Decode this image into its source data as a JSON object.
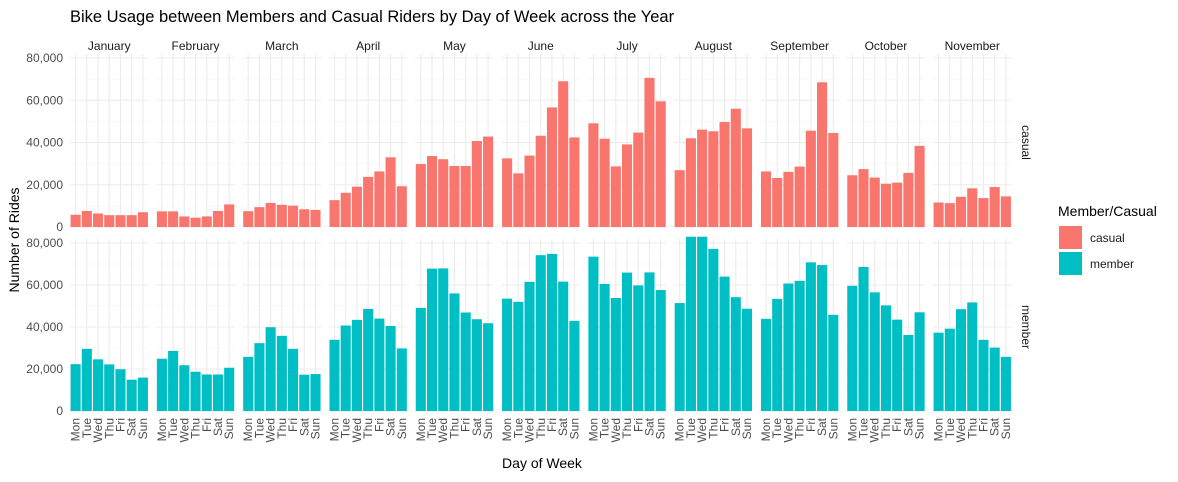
{
  "chart_data": {
    "type": "bar",
    "title": "Bike Usage between Members and Casual Riders by Day of Week across the Year",
    "xlabel": "Day of Week",
    "ylabel": "Number of Rides",
    "ylim": [
      0,
      80000
    ],
    "yticks": [
      0,
      20000,
      40000,
      60000,
      80000
    ],
    "ytick_labels": [
      "0",
      "20,000",
      "40,000",
      "60,000",
      "80,000"
    ],
    "grid": true,
    "legend_position": "right",
    "legend_title": "Member/Casual",
    "days": [
      "Mon",
      "Tue",
      "Wed",
      "Thu",
      "Fri",
      "Sat",
      "Sun"
    ],
    "months": [
      "January",
      "February",
      "March",
      "April",
      "May",
      "June",
      "July",
      "August",
      "September",
      "October",
      "November"
    ],
    "series": [
      {
        "name": "casual",
        "color": "#F8766D",
        "values": [
          [
            5800,
            7600,
            6400,
            5600,
            5600,
            5600,
            7000
          ],
          [
            7400,
            7400,
            5000,
            4400,
            5000,
            7600,
            10700
          ],
          [
            7500,
            9400,
            11400,
            10500,
            10100,
            8400,
            8100
          ],
          [
            12700,
            16200,
            19100,
            23700,
            26300,
            33000,
            19300
          ],
          [
            29800,
            33600,
            32100,
            28900,
            28900,
            40700,
            42800
          ],
          [
            32500,
            25400,
            33800,
            43200,
            56600,
            69000,
            42400
          ],
          [
            49100,
            41800,
            28700,
            39100,
            44700,
            70600,
            59500
          ],
          [
            26900,
            42000,
            46100,
            45300,
            49700,
            56000,
            46700
          ],
          [
            26300,
            23200,
            26100,
            28600,
            45600,
            68500,
            44500
          ],
          [
            24500,
            27400,
            23400,
            20500,
            21000,
            25600,
            38400
          ],
          [
            11600,
            11300,
            14300,
            18300,
            13700,
            18900,
            14500
          ]
        ]
      },
      {
        "name": "member",
        "color": "#00BFC4",
        "values": [
          [
            22300,
            29600,
            24600,
            22200,
            19900,
            14900,
            15900
          ],
          [
            24900,
            28600,
            21800,
            18700,
            17400,
            17400,
            20600
          ],
          [
            25800,
            32300,
            39900,
            35800,
            29600,
            17300,
            17600
          ],
          [
            33900,
            40700,
            43400,
            48600,
            44000,
            40500,
            29800
          ],
          [
            49100,
            67800,
            67900,
            56000,
            46900,
            43700,
            41800
          ],
          [
            53500,
            52000,
            61500,
            74200,
            74800,
            61600,
            42900
          ],
          [
            73500,
            60500,
            53800,
            65900,
            59800,
            66000,
            57600
          ],
          [
            51400,
            83000,
            83000,
            77200,
            64000,
            54200,
            48700
          ],
          [
            43900,
            53400,
            60700,
            62000,
            70800,
            69500,
            45800
          ],
          [
            59600,
            68600,
            56500,
            50300,
            43500,
            36200,
            47000
          ],
          [
            37300,
            39200,
            48500,
            51700,
            33900,
            30200,
            25800
          ]
        ]
      }
    ]
  }
}
